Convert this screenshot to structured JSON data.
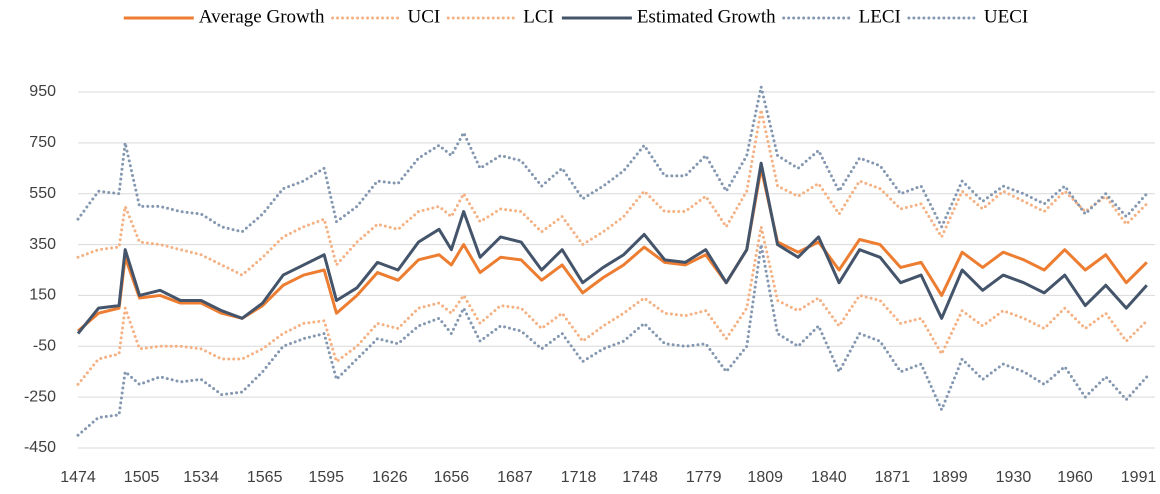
{
  "chart_data": {
    "type": "line",
    "x": [
      1474,
      1484,
      1494,
      1497,
      1504,
      1514,
      1524,
      1534,
      1544,
      1554,
      1564,
      1574,
      1584,
      1594,
      1600,
      1610,
      1620,
      1630,
      1640,
      1650,
      1656,
      1662,
      1670,
      1680,
      1690,
      1700,
      1710,
      1720,
      1730,
      1740,
      1750,
      1760,
      1770,
      1780,
      1790,
      1800,
      1807,
      1815,
      1825,
      1835,
      1845,
      1855,
      1865,
      1875,
      1885,
      1895,
      1905,
      1915,
      1925,
      1935,
      1945,
      1955,
      1965,
      1975,
      1985,
      1995
    ],
    "series": [
      {
        "name": "UCI",
        "color": "#f4b183",
        "dash": "dotted",
        "values": [
          300,
          330,
          340,
          500,
          360,
          350,
          330,
          310,
          270,
          230,
          300,
          380,
          420,
          450,
          270,
          360,
          430,
          410,
          480,
          500,
          460,
          550,
          440,
          490,
          480,
          400,
          460,
          350,
          400,
          460,
          560,
          480,
          480,
          540,
          420,
          560,
          880,
          580,
          540,
          590,
          470,
          600,
          570,
          490,
          510,
          380,
          560,
          490,
          560,
          520,
          480,
          560,
          480,
          540,
          430,
          510
        ]
      },
      {
        "name": "LCI",
        "color": "#f4b183",
        "dash": "dotted",
        "values": [
          -200,
          -100,
          -80,
          100,
          -60,
          -50,
          -50,
          -60,
          -100,
          -100,
          -60,
          0,
          40,
          50,
          -110,
          -50,
          40,
          20,
          100,
          120,
          80,
          150,
          40,
          110,
          100,
          20,
          80,
          -30,
          30,
          80,
          140,
          80,
          70,
          90,
          -20,
          100,
          420,
          130,
          90,
          140,
          30,
          150,
          130,
          40,
          60,
          -80,
          90,
          30,
          90,
          60,
          20,
          100,
          20,
          80,
          -30,
          50
        ]
      },
      {
        "name": "LECI",
        "color": "#8497b0",
        "dash": "dotted",
        "values": [
          -400,
          -330,
          -320,
          -150,
          -200,
          -170,
          -190,
          -180,
          -240,
          -230,
          -150,
          -50,
          -20,
          0,
          -180,
          -100,
          -20,
          -40,
          30,
          60,
          0,
          100,
          -30,
          30,
          10,
          -60,
          0,
          -110,
          -60,
          -30,
          40,
          -40,
          -50,
          -40,
          -150,
          -50,
          350,
          0,
          -50,
          30,
          -150,
          0,
          -30,
          -150,
          -120,
          -300,
          -100,
          -180,
          -120,
          -150,
          -200,
          -130,
          -250,
          -170,
          -260,
          -170
        ]
      },
      {
        "name": "UECI",
        "color": "#8497b0",
        "dash": "dotted",
        "values": [
          450,
          560,
          550,
          750,
          500,
          500,
          480,
          470,
          420,
          400,
          470,
          570,
          600,
          650,
          440,
          500,
          600,
          590,
          690,
          740,
          700,
          790,
          650,
          700,
          680,
          580,
          650,
          530,
          580,
          640,
          740,
          620,
          620,
          700,
          560,
          700,
          970,
          700,
          650,
          720,
          560,
          690,
          660,
          550,
          580,
          420,
          600,
          520,
          580,
          550,
          510,
          580,
          470,
          550,
          460,
          550
        ]
      },
      {
        "name": "Average Growth",
        "color": "#ed7d31",
        "dash": "solid",
        "values": [
          10,
          80,
          100,
          300,
          140,
          150,
          120,
          120,
          80,
          60,
          110,
          190,
          230,
          250,
          80,
          150,
          240,
          210,
          290,
          310,
          270,
          350,
          240,
          300,
          290,
          210,
          270,
          160,
          220,
          270,
          340,
          280,
          270,
          310,
          200,
          330,
          650,
          360,
          320,
          360,
          250,
          370,
          350,
          260,
          280,
          150,
          320,
          260,
          320,
          290,
          250,
          330,
          250,
          310,
          200,
          280
        ]
      },
      {
        "name": "Estimated Growth",
        "color": "#44546a",
        "dash": "solid",
        "values": [
          0,
          100,
          110,
          330,
          150,
          170,
          130,
          130,
          90,
          60,
          120,
          230,
          270,
          310,
          130,
          180,
          280,
          250,
          360,
          410,
          330,
          480,
          300,
          380,
          360,
          250,
          330,
          200,
          260,
          310,
          390,
          290,
          280,
          330,
          200,
          330,
          670,
          350,
          300,
          380,
          200,
          330,
          300,
          200,
          230,
          60,
          250,
          170,
          230,
          200,
          160,
          230,
          110,
          190,
          100,
          190
        ]
      }
    ],
    "legend_order": [
      "Average Growth",
      "UCI",
      "LCI",
      "Estimated Growth",
      "LECI",
      "UECI"
    ],
    "xlim": [
      1474,
      1999
    ],
    "xticks": [
      1474,
      1505,
      1534,
      1565,
      1595,
      1626,
      1656,
      1687,
      1718,
      1748,
      1779,
      1809,
      1840,
      1871,
      1899,
      1930,
      1960,
      1991
    ],
    "ylim": [
      -450,
      950
    ],
    "yticks": [
      -450,
      -250,
      -50,
      150,
      350,
      550,
      750,
      950
    ],
    "grid": true,
    "legend": "top"
  }
}
